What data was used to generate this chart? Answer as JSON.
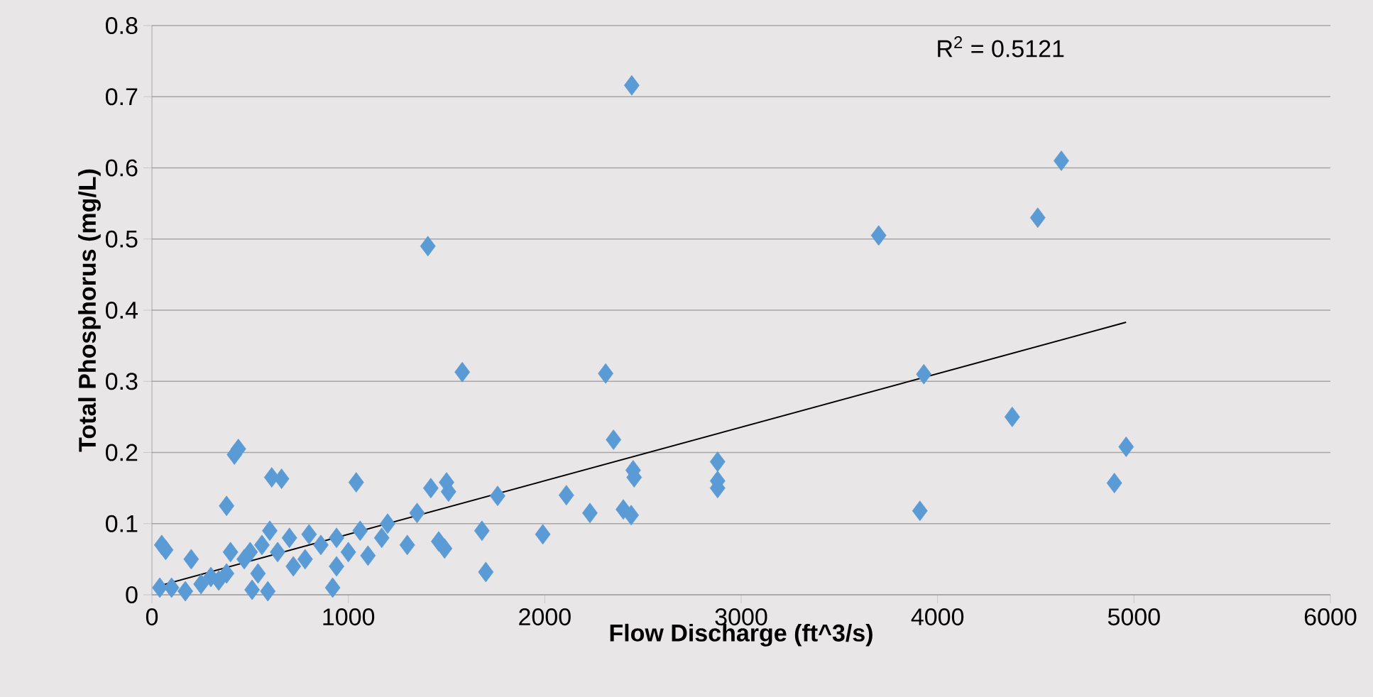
{
  "chart_data": {
    "type": "scatter",
    "xlabel": "Flow Discharge (ft^3/s)",
    "ylabel": "Total Phosphorus (mg/L)",
    "xlim": [
      0,
      6000
    ],
    "xticks": [
      0,
      1000,
      2000,
      3000,
      4000,
      5000,
      6000
    ],
    "ylim": [
      0,
      0.8
    ],
    "yticks": [
      0,
      0.1,
      0.2,
      0.3,
      0.4,
      0.5,
      0.6,
      0.7,
      0.8
    ],
    "grid": "y",
    "marker": "diamond",
    "annotations": [
      "R$^{2}$ = 0.5121"
    ],
    "series": [
      {
        "color": "#5b9bd5",
        "x": [
          2443,
          1405,
          4630,
          4510,
          3700,
          3930,
          1580,
          2310,
          4380,
          2350,
          4960,
          2450,
          2455,
          2880,
          2880,
          2880,
          4900,
          3910,
          2400,
          2440,
          2230,
          2110,
          1990,
          1760,
          1680,
          1700,
          1500,
          1510,
          1420,
          1460,
          1490,
          1350,
          1300,
          1200,
          1170,
          1100,
          1060,
          1040,
          1000,
          940,
          920,
          940,
          860,
          800,
          780,
          720,
          700,
          660,
          610,
          640,
          600,
          590,
          560,
          540,
          500,
          510,
          470,
          440,
          420,
          400,
          380,
          380,
          340,
          300,
          250,
          200,
          170,
          100,
          50,
          70,
          40
        ],
        "values": [
          0.716,
          0.49,
          0.61,
          0.53,
          0.505,
          0.31,
          0.313,
          0.311,
          0.25,
          0.218,
          0.208,
          0.175,
          0.165,
          0.187,
          0.16,
          0.15,
          0.157,
          0.118,
          0.12,
          0.112,
          0.115,
          0.14,
          0.085,
          0.139,
          0.09,
          0.032,
          0.158,
          0.145,
          0.15,
          0.075,
          0.065,
          0.115,
          0.07,
          0.1,
          0.08,
          0.055,
          0.09,
          0.158,
          0.06,
          0.08,
          0.01,
          0.04,
          0.07,
          0.085,
          0.05,
          0.04,
          0.08,
          0.163,
          0.165,
          0.06,
          0.09,
          0.005,
          0.07,
          0.03,
          0.06,
          0.007,
          0.05,
          0.205,
          0.197,
          0.06,
          0.125,
          0.03,
          0.02,
          0.025,
          0.015,
          0.05,
          0.005,
          0.01,
          0.07,
          0.063,
          0.01
        ]
      },
      {
        "type": "line",
        "marker": "none",
        "color": "#000000",
        "x": [
          43,
          4960
        ],
        "values": [
          0.013,
          0.383
        ]
      }
    ]
  }
}
